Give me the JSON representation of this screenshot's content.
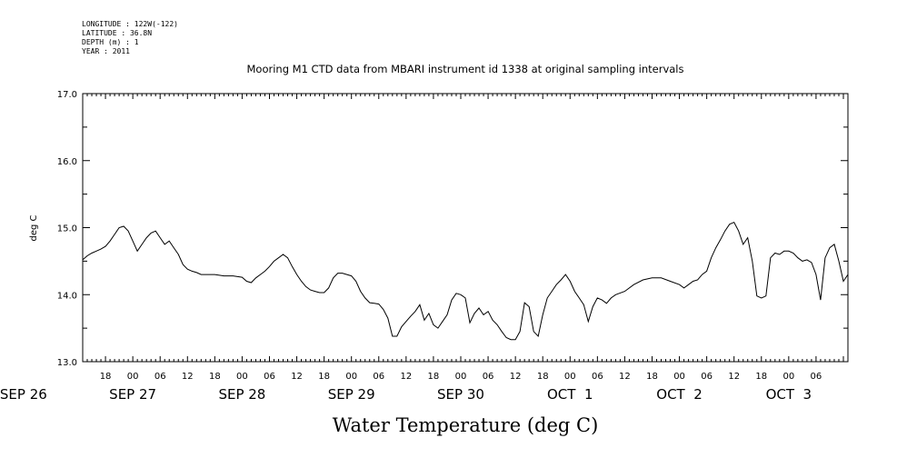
{
  "meta": {
    "longitude": "LONGITUDE : 122W(-122)",
    "latitude": "LATITUDE : 36.8N",
    "depth": "DEPTH (m) : 1",
    "year": "YEAR : 2011"
  },
  "chart_data": {
    "type": "line",
    "title": "Mooring M1 CTD data from MBARI instrument id 1338 at original sampling intervals",
    "ylabel": "deg C",
    "caption": "Water Temperature (deg C)",
    "ylim": [
      13.0,
      17.0
    ],
    "yticks": [
      "13.0",
      "14.0",
      "15.0",
      "16.0",
      "17.0"
    ],
    "xlim_hours": [
      13,
      181
    ],
    "hour_ticks": [
      "18",
      "00",
      "06",
      "12",
      "18",
      "00",
      "06",
      "12",
      "18",
      "00",
      "06",
      "12",
      "18",
      "00",
      "06",
      "12",
      "18",
      "00",
      "06",
      "12",
      "18",
      "00",
      "06",
      "12",
      "18",
      "00",
      "06"
    ],
    "date_labels": [
      "SEP 26",
      "SEP 27",
      "SEP 28",
      "SEP 29",
      "SEP 30",
      "OCT  1",
      "OCT  2",
      "OCT  3"
    ],
    "x_unit": "hours since SEP 26 00:00 (2011)",
    "series": [
      {
        "points": [
          [
            13,
            14.52
          ],
          [
            14,
            14.58
          ],
          [
            15,
            14.62
          ],
          [
            16,
            14.65
          ],
          [
            17,
            14.68
          ],
          [
            18,
            14.72
          ],
          [
            19,
            14.8
          ],
          [
            20,
            14.9
          ],
          [
            21,
            15.0
          ],
          [
            22,
            15.02
          ],
          [
            23,
            14.95
          ],
          [
            24,
            14.8
          ],
          [
            25,
            14.65
          ],
          [
            26,
            14.75
          ],
          [
            27,
            14.85
          ],
          [
            28,
            14.92
          ],
          [
            29,
            14.95
          ],
          [
            30,
            14.85
          ],
          [
            31,
            14.75
          ],
          [
            32,
            14.8
          ],
          [
            33,
            14.7
          ],
          [
            34,
            14.6
          ],
          [
            35,
            14.45
          ],
          [
            36,
            14.38
          ],
          [
            37,
            14.35
          ],
          [
            38,
            14.33
          ],
          [
            39,
            14.3
          ],
          [
            40,
            14.3
          ],
          [
            42,
            14.3
          ],
          [
            44,
            14.28
          ],
          [
            46,
            14.28
          ],
          [
            48,
            14.26
          ],
          [
            49,
            14.2
          ],
          [
            50,
            14.18
          ],
          [
            51,
            14.25
          ],
          [
            52,
            14.3
          ],
          [
            53,
            14.35
          ],
          [
            54,
            14.42
          ],
          [
            55,
            14.5
          ],
          [
            56,
            14.55
          ],
          [
            57,
            14.6
          ],
          [
            58,
            14.55
          ],
          [
            59,
            14.42
          ],
          [
            60,
            14.3
          ],
          [
            61,
            14.2
          ],
          [
            62,
            14.12
          ],
          [
            63,
            14.07
          ],
          [
            64,
            14.05
          ],
          [
            65,
            14.03
          ],
          [
            66,
            14.03
          ],
          [
            67,
            14.1
          ],
          [
            68,
            14.25
          ],
          [
            69,
            14.32
          ],
          [
            70,
            14.32
          ],
          [
            71,
            14.3
          ],
          [
            72,
            14.28
          ],
          [
            73,
            14.2
          ],
          [
            74,
            14.05
          ],
          [
            75,
            13.95
          ],
          [
            76,
            13.88
          ],
          [
            77,
            13.87
          ],
          [
            78,
            13.86
          ],
          [
            79,
            13.78
          ],
          [
            80,
            13.65
          ],
          [
            81,
            13.38
          ],
          [
            82,
            13.38
          ],
          [
            83,
            13.52
          ],
          [
            84,
            13.6
          ],
          [
            85,
            13.68
          ],
          [
            86,
            13.75
          ],
          [
            87,
            13.85
          ],
          [
            88,
            13.62
          ],
          [
            89,
            13.72
          ],
          [
            90,
            13.55
          ],
          [
            91,
            13.5
          ],
          [
            92,
            13.6
          ],
          [
            93,
            13.7
          ],
          [
            94,
            13.92
          ],
          [
            95,
            14.02
          ],
          [
            96,
            14.0
          ],
          [
            97,
            13.95
          ],
          [
            98,
            13.58
          ],
          [
            99,
            13.72
          ],
          [
            100,
            13.8
          ],
          [
            101,
            13.7
          ],
          [
            102,
            13.75
          ],
          [
            103,
            13.62
          ],
          [
            104,
            13.55
          ],
          [
            105,
            13.45
          ],
          [
            106,
            13.36
          ],
          [
            107,
            13.33
          ],
          [
            108,
            13.33
          ],
          [
            109,
            13.45
          ],
          [
            110,
            13.88
          ],
          [
            111,
            13.82
          ],
          [
            112,
            13.45
          ],
          [
            113,
            13.38
          ],
          [
            114,
            13.7
          ],
          [
            115,
            13.95
          ],
          [
            116,
            14.05
          ],
          [
            117,
            14.15
          ],
          [
            118,
            14.22
          ],
          [
            119,
            14.3
          ],
          [
            120,
            14.2
          ],
          [
            121,
            14.05
          ],
          [
            122,
            13.95
          ],
          [
            123,
            13.85
          ],
          [
            124,
            13.6
          ],
          [
            125,
            13.82
          ],
          [
            126,
            13.95
          ],
          [
            127,
            13.92
          ],
          [
            128,
            13.87
          ],
          [
            129,
            13.95
          ],
          [
            130,
            14.0
          ],
          [
            132,
            14.05
          ],
          [
            134,
            14.15
          ],
          [
            136,
            14.22
          ],
          [
            138,
            14.25
          ],
          [
            140,
            14.25
          ],
          [
            142,
            14.2
          ],
          [
            144,
            14.15
          ],
          [
            145,
            14.1
          ],
          [
            146,
            14.15
          ],
          [
            147,
            14.2
          ],
          [
            148,
            14.22
          ],
          [
            149,
            14.3
          ],
          [
            150,
            14.35
          ],
          [
            151,
            14.55
          ],
          [
            152,
            14.7
          ],
          [
            153,
            14.82
          ],
          [
            154,
            14.95
          ],
          [
            155,
            15.05
          ],
          [
            156,
            15.08
          ],
          [
            157,
            14.95
          ],
          [
            158,
            14.75
          ],
          [
            159,
            14.85
          ],
          [
            160,
            14.5
          ],
          [
            161,
            13.98
          ],
          [
            162,
            13.95
          ],
          [
            163,
            13.98
          ],
          [
            164,
            14.55
          ],
          [
            165,
            14.62
          ],
          [
            166,
            14.6
          ],
          [
            167,
            14.65
          ],
          [
            168,
            14.65
          ],
          [
            169,
            14.62
          ],
          [
            170,
            14.55
          ],
          [
            171,
            14.5
          ],
          [
            172,
            14.52
          ],
          [
            173,
            14.48
          ],
          [
            174,
            14.3
          ],
          [
            175,
            13.92
          ],
          [
            176,
            14.55
          ],
          [
            177,
            14.7
          ],
          [
            178,
            14.75
          ],
          [
            179,
            14.5
          ],
          [
            180,
            14.2
          ],
          [
            181,
            14.3
          ]
        ]
      }
    ]
  }
}
